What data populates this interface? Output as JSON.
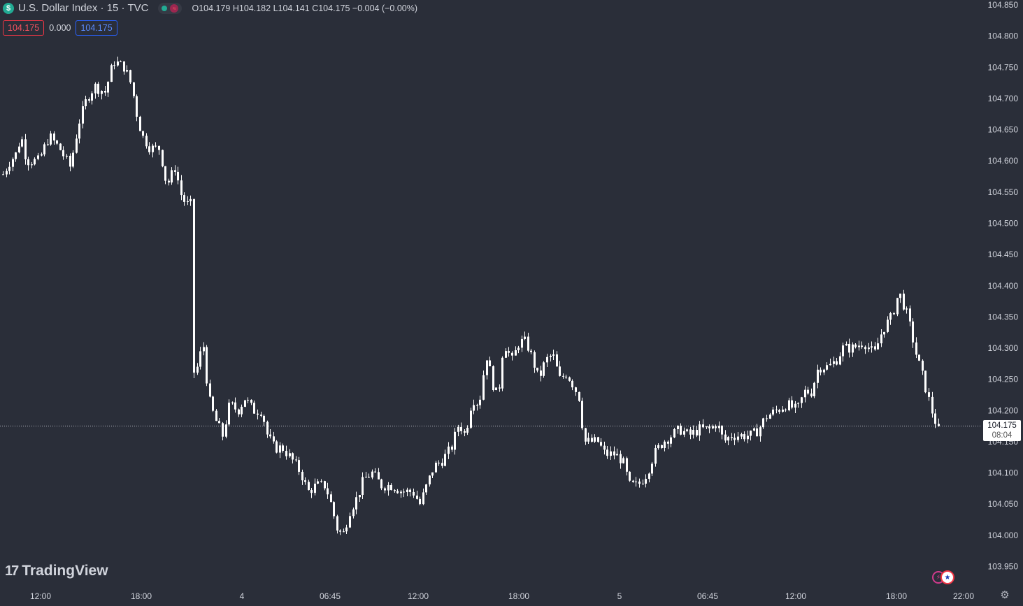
{
  "header": {
    "symbol_icon": "$",
    "title": "U.S. Dollar Index · 15 · TVC",
    "market_status_icon": "open-status-dot",
    "delay_icon": "≈",
    "ohlc": {
      "open_label": "O",
      "open": "104.179",
      "high_label": "H",
      "high": "104.182",
      "low_label": "L",
      "low": "104.141",
      "close_label": "C",
      "close": "104.175",
      "change": "−0.004 (−0.00%)"
    },
    "bid": "104.175",
    "spread": "0.000",
    "ask": "104.175"
  },
  "price_tag": {
    "price": "104.175",
    "countdown": "08:04"
  },
  "brand": {
    "name": "TradingView",
    "mark": "17"
  },
  "colors": {
    "background": "#2a2e39",
    "candle": "#ffffff",
    "axis_text": "#d1d4dc",
    "last_price_line": "#b2b5be"
  },
  "chart_data": {
    "type": "candlestick",
    "interval": "15",
    "title": "U.S. Dollar Index · 15 · TVC",
    "ylim": [
      103.93,
      104.855
    ],
    "y_ticks": [
      "104.850",
      "104.800",
      "104.750",
      "104.700",
      "104.650",
      "104.600",
      "104.550",
      "104.500",
      "104.450",
      "104.400",
      "104.350",
      "104.300",
      "104.250",
      "104.200",
      "104.150",
      "104.100",
      "104.050",
      "104.000",
      "103.950"
    ],
    "x_ticks": [
      "12:00",
      "18:00",
      "4",
      "06:45",
      "12:00",
      "18:00",
      "5",
      "06:45",
      "12:00",
      "18:00",
      "22:00"
    ],
    "last_price": 104.175,
    "grid": false,
    "path": [
      [
        0,
        104.57
      ],
      [
        14,
        104.6
      ],
      [
        22,
        104.61
      ],
      [
        30,
        104.64
      ],
      [
        38,
        104.6
      ],
      [
        55,
        104.6
      ],
      [
        70,
        104.64
      ],
      [
        85,
        104.62
      ],
      [
        100,
        104.59
      ],
      [
        112,
        104.66
      ],
      [
        124,
        104.7
      ],
      [
        135,
        104.72
      ],
      [
        150,
        104.71
      ],
      [
        162,
        104.76
      ],
      [
        178,
        104.75
      ],
      [
        188,
        104.72
      ],
      [
        196,
        104.67
      ],
      [
        203,
        104.64
      ],
      [
        215,
        104.62
      ],
      [
        228,
        104.62
      ],
      [
        238,
        104.56
      ],
      [
        250,
        104.59
      ],
      [
        260,
        104.54
      ],
      [
        268,
        104.53
      ],
      [
        273,
        104.53
      ],
      [
        276,
        104.26
      ],
      [
        282,
        104.27
      ],
      [
        290,
        104.31
      ],
      [
        298,
        104.22
      ],
      [
        306,
        104.19
      ],
      [
        318,
        104.16
      ],
      [
        328,
        104.21
      ],
      [
        340,
        104.2
      ],
      [
        350,
        104.22
      ],
      [
        362,
        104.2
      ],
      [
        374,
        104.2
      ],
      [
        382,
        104.16
      ],
      [
        392,
        104.14
      ],
      [
        404,
        104.14
      ],
      [
        418,
        104.12
      ],
      [
        430,
        104.1
      ],
      [
        440,
        104.07
      ],
      [
        452,
        104.08
      ],
      [
        465,
        104.08
      ],
      [
        473,
        104.05
      ],
      [
        482,
        104.01
      ],
      [
        490,
        104.0
      ],
      [
        500,
        104.04
      ],
      [
        510,
        104.06
      ],
      [
        520,
        104.09
      ],
      [
        532,
        104.1
      ],
      [
        545,
        104.08
      ],
      [
        560,
        104.08
      ],
      [
        575,
        104.07
      ],
      [
        590,
        104.07
      ],
      [
        600,
        104.05
      ],
      [
        610,
        104.08
      ],
      [
        620,
        104.11
      ],
      [
        632,
        104.12
      ],
      [
        645,
        104.14
      ],
      [
        656,
        104.18
      ],
      [
        665,
        104.16
      ],
      [
        675,
        104.22
      ],
      [
        685,
        104.21
      ],
      [
        695,
        104.29
      ],
      [
        705,
        104.24
      ],
      [
        712,
        104.22
      ],
      [
        720,
        104.31
      ],
      [
        732,
        104.28
      ],
      [
        742,
        104.31
      ],
      [
        752,
        104.31
      ],
      [
        762,
        104.28
      ],
      [
        770,
        104.25
      ],
      [
        780,
        104.28
      ],
      [
        790,
        104.29
      ],
      [
        800,
        104.25
      ],
      [
        810,
        104.26
      ],
      [
        820,
        104.24
      ],
      [
        828,
        104.22
      ],
      [
        835,
        104.15
      ],
      [
        845,
        104.15
      ],
      [
        855,
        104.15
      ],
      [
        865,
        104.13
      ],
      [
        878,
        104.13
      ],
      [
        890,
        104.12
      ],
      [
        900,
        104.08
      ],
      [
        912,
        104.08
      ],
      [
        925,
        104.1
      ],
      [
        935,
        104.13
      ],
      [
        948,
        104.15
      ],
      [
        960,
        104.16
      ],
      [
        972,
        104.17
      ],
      [
        985,
        104.16
      ],
      [
        1000,
        104.17
      ],
      [
        1015,
        104.17
      ],
      [
        1025,
        104.18
      ],
      [
        1035,
        104.15
      ],
      [
        1045,
        104.16
      ],
      [
        1060,
        104.16
      ],
      [
        1075,
        104.16
      ],
      [
        1085,
        104.17
      ],
      [
        1095,
        104.19
      ],
      [
        1110,
        104.2
      ],
      [
        1125,
        104.21
      ],
      [
        1140,
        104.2
      ],
      [
        1150,
        104.23
      ],
      [
        1160,
        104.23
      ],
      [
        1170,
        104.27
      ],
      [
        1185,
        104.27
      ],
      [
        1195,
        104.28
      ],
      [
        1205,
        104.3
      ],
      [
        1220,
        104.3
      ],
      [
        1235,
        104.31
      ],
      [
        1250,
        104.29
      ],
      [
        1262,
        104.33
      ],
      [
        1275,
        104.35
      ],
      [
        1285,
        104.39
      ],
      [
        1295,
        104.36
      ],
      [
        1302,
        104.33
      ],
      [
        1310,
        104.29
      ],
      [
        1318,
        104.26
      ],
      [
        1325,
        104.23
      ],
      [
        1332,
        104.2
      ],
      [
        1338,
        104.18
      ],
      [
        1343,
        104.175
      ]
    ]
  }
}
